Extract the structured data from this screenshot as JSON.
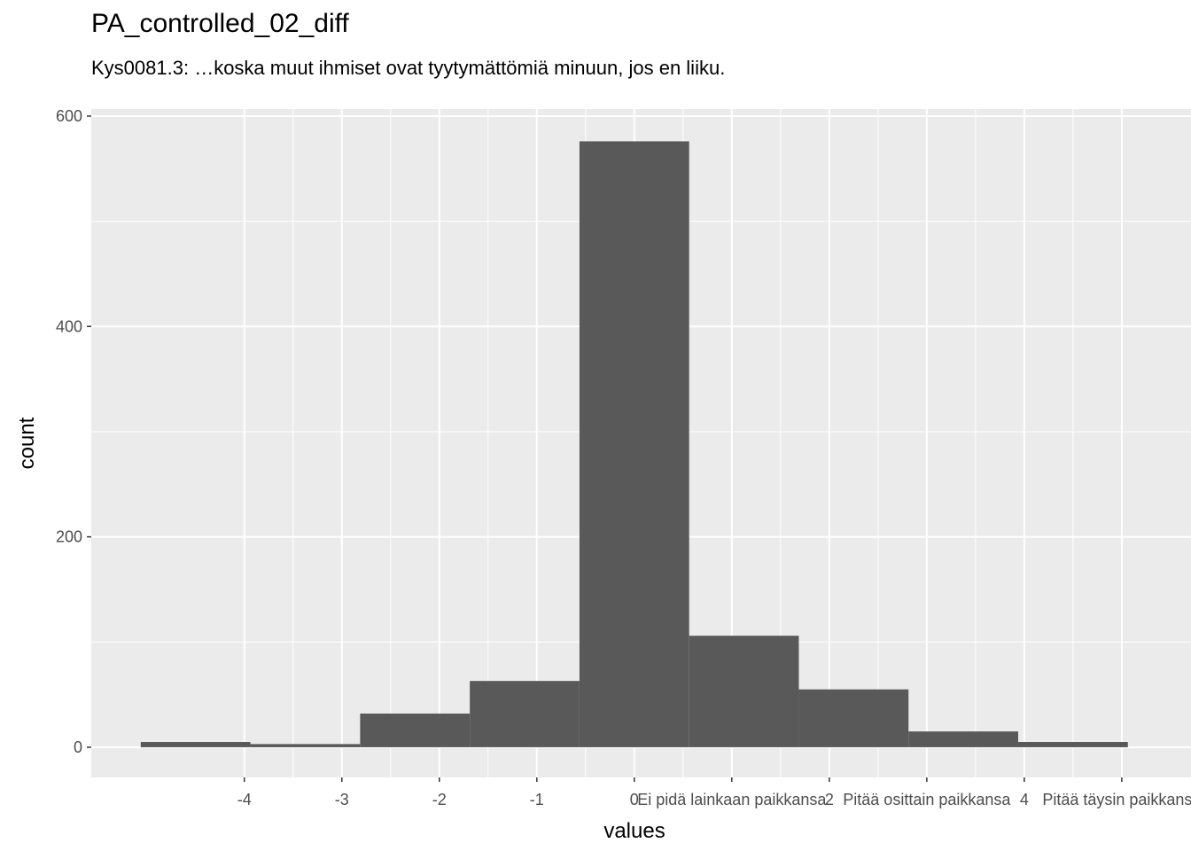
{
  "chart_data": {
    "type": "histogram",
    "title": "PA_controlled_02_diff",
    "subtitle": "Kys0081.3: …koska muut ihmiset ovat tyytymättömiä minuun, jos en liiku.",
    "x_label": "values",
    "y_label": "count",
    "bins": [
      -5.0625,
      -3.9375,
      -2.8125,
      -1.6875,
      -0.5625,
      0.5625,
      1.6875,
      2.8125,
      3.9375,
      5.0625
    ],
    "counts": [
      5,
      3,
      32,
      63,
      576,
      106,
      55,
      15,
      5
    ],
    "color": "#595959",
    "xlim": [
      -5.57,
      5.71
    ],
    "ylim": [
      -28.7,
      606.7
    ],
    "xticks": [
      -4,
      -3,
      -2,
      -1,
      0,
      {
        "value": 1,
        "label": "Ei pidä lainkaan paikkansa"
      },
      2,
      {
        "value": 3,
        "label": "Pitää osittain paikkansa"
      },
      4,
      {
        "value": 5,
        "label": "Pitää täysin paikkansa"
      }
    ],
    "yticks": [
      0,
      200,
      400,
      600
    ],
    "grid": true
  }
}
